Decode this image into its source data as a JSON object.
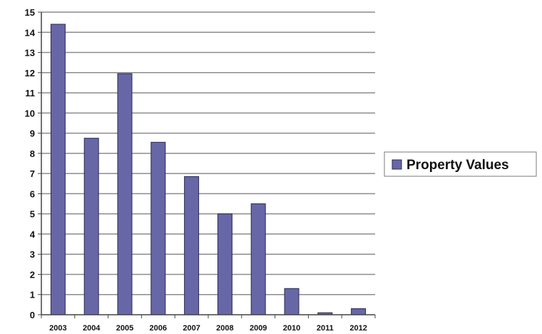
{
  "chart_data": {
    "type": "bar",
    "categories": [
      "2003",
      "2004",
      "2005",
      "2006",
      "2007",
      "2008",
      "2009",
      "2010",
      "2011",
      "2012"
    ],
    "series": [
      {
        "name": "Property Values",
        "values": [
          14.4,
          8.75,
          11.95,
          8.55,
          6.85,
          5.0,
          5.5,
          1.3,
          0.1,
          0.3
        ]
      }
    ],
    "yticks": [
      0,
      1,
      2,
      3,
      4,
      5,
      6,
      7,
      8,
      9,
      10,
      11,
      12,
      13,
      14,
      15
    ],
    "ylim": [
      0,
      15
    ],
    "grid": true,
    "legend_position": "right",
    "colors": {
      "bar": "#6767a7",
      "bar_edge": "#2b2b55",
      "grid": "#8c8c8c",
      "axis": "#444444"
    }
  }
}
